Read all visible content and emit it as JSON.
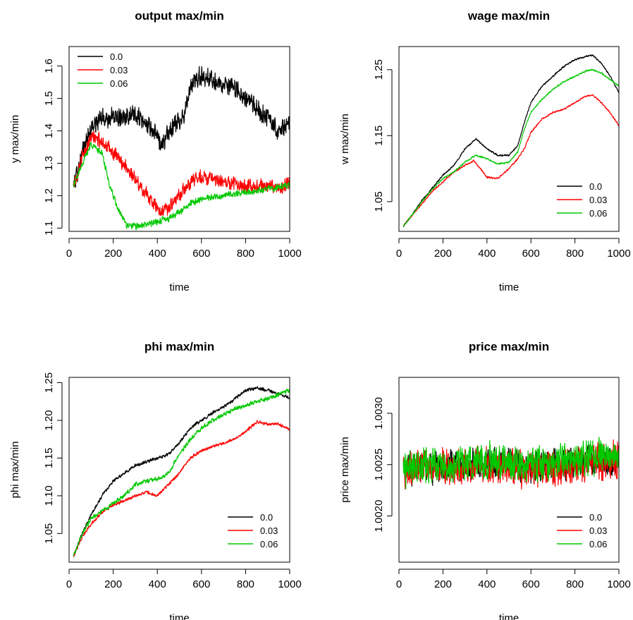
{
  "series_colors": {
    "0.0": "#000000",
    "0.03": "#ff0000",
    "0.06": "#00c800"
  },
  "chart_data": [
    {
      "type": "line",
      "title": "output max/min",
      "xlabel": "time",
      "ylabel": "y max/min",
      "xlim": [
        0,
        1000
      ],
      "ylim": [
        1.09,
        1.66
      ],
      "xticks": [
        0,
        200,
        400,
        600,
        800,
        1000
      ],
      "xtick_labels": [
        "0",
        "200",
        "400",
        "600",
        "800",
        "1000"
      ],
      "yticks": [
        1.1,
        1.2,
        1.3,
        1.4,
        1.5,
        1.6
      ],
      "ytick_labels": [
        "1.1",
        "1.2",
        "1.3",
        "1.4",
        "1.5",
        "1.6"
      ],
      "legend": "top-left",
      "noise": [
        0.035,
        0.025,
        0.012
      ],
      "series": [
        {
          "name": "0.0",
          "color": "#000000",
          "x": [
            20,
            60,
            100,
            150,
            200,
            260,
            320,
            380,
            420,
            460,
            520,
            560,
            600,
            640,
            700,
            760,
            800,
            850,
            900,
            950,
            1000
          ],
          "y": [
            1.23,
            1.33,
            1.41,
            1.44,
            1.44,
            1.45,
            1.44,
            1.4,
            1.36,
            1.4,
            1.45,
            1.55,
            1.57,
            1.56,
            1.54,
            1.53,
            1.5,
            1.47,
            1.44,
            1.4,
            1.42
          ]
        },
        {
          "name": "0.03",
          "color": "#ff0000",
          "x": [
            20,
            60,
            100,
            150,
            200,
            260,
            320,
            380,
            420,
            460,
            520,
            560,
            600,
            640,
            700,
            760,
            800,
            850,
            900,
            950,
            1000
          ],
          "y": [
            1.23,
            1.32,
            1.38,
            1.37,
            1.33,
            1.29,
            1.23,
            1.18,
            1.15,
            1.17,
            1.22,
            1.25,
            1.26,
            1.25,
            1.24,
            1.24,
            1.23,
            1.23,
            1.23,
            1.22,
            1.24
          ]
        },
        {
          "name": "0.06",
          "color": "#00c800",
          "x": [
            20,
            60,
            100,
            150,
            180,
            220,
            260,
            300,
            350,
            400,
            450,
            500,
            560,
            600,
            700,
            800,
            900,
            1000
          ],
          "y": [
            1.23,
            1.3,
            1.36,
            1.33,
            1.24,
            1.16,
            1.11,
            1.105,
            1.11,
            1.12,
            1.13,
            1.15,
            1.18,
            1.19,
            1.2,
            1.21,
            1.22,
            1.235
          ]
        }
      ]
    },
    {
      "type": "line",
      "title": "wage max/min",
      "xlabel": "time",
      "ylabel": "w max/min",
      "xlim": [
        0,
        1000
      ],
      "ylim": [
        1.005,
        1.285
      ],
      "xticks": [
        0,
        200,
        400,
        600,
        800,
        1000
      ],
      "xtick_labels": [
        "0",
        "200",
        "400",
        "600",
        "800",
        "1000"
      ],
      "yticks": [
        1.05,
        1.15,
        1.25
      ],
      "ytick_labels": [
        "1.05",
        "1.15",
        "1.25"
      ],
      "legend": "bottom-right",
      "noise": [
        0.0015,
        0.0015,
        0.0015
      ],
      "series": [
        {
          "name": "0.0",
          "color": "#000000",
          "x": [
            20,
            60,
            100,
            150,
            200,
            250,
            300,
            350,
            400,
            450,
            500,
            540,
            570,
            600,
            650,
            700,
            750,
            800,
            850,
            880,
            920,
            960,
            1000
          ],
          "y": [
            1.013,
            1.03,
            1.05,
            1.07,
            1.09,
            1.105,
            1.13,
            1.145,
            1.13,
            1.12,
            1.12,
            1.135,
            1.17,
            1.2,
            1.225,
            1.24,
            1.255,
            1.265,
            1.27,
            1.272,
            1.26,
            1.24,
            1.215
          ]
        },
        {
          "name": "0.03",
          "color": "#ff0000",
          "x": [
            20,
            60,
            100,
            150,
            200,
            250,
            300,
            340,
            370,
            400,
            450,
            500,
            540,
            570,
            600,
            650,
            700,
            750,
            800,
            850,
            880,
            920,
            960,
            1000
          ],
          "y": [
            1.013,
            1.03,
            1.045,
            1.065,
            1.08,
            1.095,
            1.105,
            1.112,
            1.1,
            1.087,
            1.085,
            1.1,
            1.115,
            1.13,
            1.155,
            1.175,
            1.185,
            1.19,
            1.2,
            1.21,
            1.212,
            1.2,
            1.185,
            1.165
          ]
        },
        {
          "name": "0.06",
          "color": "#00c800",
          "x": [
            20,
            60,
            100,
            150,
            200,
            250,
            300,
            350,
            400,
            450,
            500,
            540,
            570,
            600,
            650,
            700,
            750,
            800,
            850,
            880,
            920,
            960,
            1000
          ],
          "y": [
            1.013,
            1.03,
            1.048,
            1.068,
            1.085,
            1.095,
            1.11,
            1.12,
            1.115,
            1.107,
            1.11,
            1.125,
            1.16,
            1.185,
            1.205,
            1.22,
            1.232,
            1.24,
            1.248,
            1.25,
            1.245,
            1.235,
            1.225
          ]
        }
      ]
    },
    {
      "type": "line",
      "title": "phi max/min",
      "xlabel": "time",
      "ylabel": "phi max/min",
      "xlim": [
        0,
        1000
      ],
      "ylim": [
        1.012,
        1.257
      ],
      "xticks": [
        0,
        200,
        400,
        600,
        800,
        1000
      ],
      "xtick_labels": [
        "0",
        "200",
        "400",
        "600",
        "800",
        "1000"
      ],
      "yticks": [
        1.05,
        1.1,
        1.15,
        1.2,
        1.25
      ],
      "ytick_labels": [
        "1.05",
        "1.10",
        "1.15",
        "1.20",
        "1.25"
      ],
      "legend": "bottom-right",
      "noise": [
        0.0025,
        0.0025,
        0.0035
      ],
      "series": [
        {
          "name": "0.0",
          "color": "#000000",
          "x": [
            20,
            60,
            100,
            150,
            200,
            250,
            300,
            350,
            400,
            450,
            500,
            550,
            600,
            650,
            700,
            750,
            800,
            850,
            900,
            950,
            1000
          ],
          "y": [
            1.02,
            1.05,
            1.075,
            1.1,
            1.12,
            1.13,
            1.14,
            1.145,
            1.15,
            1.155,
            1.17,
            1.19,
            1.2,
            1.21,
            1.218,
            1.228,
            1.24,
            1.243,
            1.24,
            1.235,
            1.23
          ]
        },
        {
          "name": "0.03",
          "color": "#ff0000",
          "x": [
            20,
            60,
            100,
            150,
            200,
            250,
            300,
            350,
            400,
            450,
            500,
            550,
            600,
            650,
            700,
            750,
            800,
            850,
            900,
            950,
            1000
          ],
          "y": [
            1.02,
            1.045,
            1.063,
            1.078,
            1.088,
            1.093,
            1.1,
            1.105,
            1.1,
            1.115,
            1.13,
            1.15,
            1.16,
            1.165,
            1.17,
            1.175,
            1.185,
            1.198,
            1.195,
            1.195,
            1.188
          ]
        },
        {
          "name": "0.06",
          "color": "#00c800",
          "x": [
            20,
            60,
            100,
            150,
            200,
            250,
            300,
            350,
            400,
            450,
            500,
            550,
            600,
            650,
            700,
            750,
            800,
            850,
            900,
            950,
            1000
          ],
          "y": [
            1.02,
            1.05,
            1.07,
            1.08,
            1.09,
            1.1,
            1.115,
            1.12,
            1.122,
            1.13,
            1.155,
            1.175,
            1.19,
            1.2,
            1.208,
            1.215,
            1.22,
            1.225,
            1.228,
            1.235,
            1.24
          ]
        }
      ]
    },
    {
      "type": "line",
      "title": "price max/min",
      "xlabel": "time",
      "ylabel": "price max/min",
      "xlim": [
        0,
        1000
      ],
      "ylim": [
        1.00155,
        1.00335
      ],
      "xticks": [
        0,
        200,
        400,
        600,
        800,
        1000
      ],
      "xtick_labels": [
        "0",
        "200",
        "400",
        "600",
        "800",
        "1000"
      ],
      "yticks": [
        1.002,
        1.0025,
        1.003
      ],
      "ytick_labels": [
        "1.0020",
        "1.0025",
        "1.0030"
      ],
      "legend": "bottom-right",
      "noise": [
        0.00018,
        0.0002,
        0.0002
      ],
      "series": [
        {
          "name": "0.0",
          "color": "#000000",
          "x": [
            20,
            200,
            400,
            600,
            800,
            1000
          ],
          "y": [
            1.00245,
            1.00248,
            1.00252,
            1.00248,
            1.00252,
            1.00255
          ]
        },
        {
          "name": "0.03",
          "color": "#ff0000",
          "x": [
            20,
            200,
            400,
            600,
            800,
            1000
          ],
          "y": [
            1.00245,
            1.00248,
            1.0025,
            1.00245,
            1.0025,
            1.00255
          ]
        },
        {
          "name": "0.06",
          "color": "#00c800",
          "x": [
            20,
            200,
            400,
            600,
            800,
            1000
          ],
          "y": [
            1.00245,
            1.0025,
            1.00255,
            1.0025,
            1.00255,
            1.0026
          ]
        }
      ]
    }
  ]
}
